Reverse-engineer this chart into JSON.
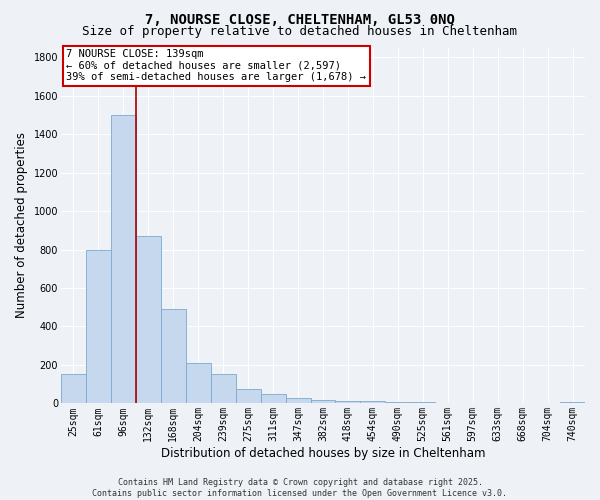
{
  "title_line1": "7, NOURSE CLOSE, CHELTENHAM, GL53 0NQ",
  "title_line2": "Size of property relative to detached houses in Cheltenham",
  "xlabel": "Distribution of detached houses by size in Cheltenham",
  "ylabel": "Number of detached properties",
  "categories": [
    "25sqm",
    "61sqm",
    "96sqm",
    "132sqm",
    "168sqm",
    "204sqm",
    "239sqm",
    "275sqm",
    "311sqm",
    "347sqm",
    "382sqm",
    "418sqm",
    "454sqm",
    "490sqm",
    "525sqm",
    "561sqm",
    "597sqm",
    "633sqm",
    "668sqm",
    "704sqm",
    "740sqm"
  ],
  "values": [
    155,
    800,
    1500,
    870,
    490,
    210,
    155,
    75,
    50,
    30,
    20,
    15,
    10,
    5,
    5,
    2,
    1,
    0,
    0,
    0,
    5
  ],
  "bar_color": "#c5d8ed",
  "bar_edge_color": "#7aaacf",
  "vline_color": "#aa0000",
  "vline_pos": 2.5,
  "annotation_text": "7 NOURSE CLOSE: 139sqm\n← 60% of detached houses are smaller (2,597)\n39% of semi-detached houses are larger (1,678) →",
  "annotation_box_facecolor": "white",
  "annotation_box_edgecolor": "#cc0000",
  "annotation_text_color": "black",
  "ylim": [
    0,
    1850
  ],
  "yticks": [
    0,
    200,
    400,
    600,
    800,
    1000,
    1200,
    1400,
    1600,
    1800
  ],
  "footer_line1": "Contains HM Land Registry data © Crown copyright and database right 2025.",
  "footer_line2": "Contains public sector information licensed under the Open Government Licence v3.0.",
  "bg_color": "#eef2f7",
  "grid_color": "#ffffff",
  "title_fontsize": 10,
  "subtitle_fontsize": 9,
  "tick_fontsize": 7,
  "label_fontsize": 8.5,
  "annotation_fontsize": 7.5,
  "footer_fontsize": 6
}
